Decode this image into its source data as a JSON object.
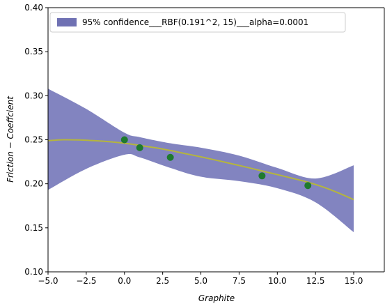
{
  "chart_data": {
    "type": "line",
    "xlabel": "Graphite",
    "ylabel": "Friction − Coeffcient",
    "xlim": [
      -5.0,
      17.0
    ],
    "ylim": [
      0.1,
      0.4
    ],
    "xticks": [
      -5.0,
      -2.5,
      0.0,
      2.5,
      5.0,
      7.5,
      10.0,
      12.5,
      15.0
    ],
    "xtick_labels": [
      "−5.0",
      "−2.5",
      "0.0",
      "2.5",
      "5.0",
      "7.5",
      "10.0",
      "12.5",
      "15.0"
    ],
    "yticks": [
      0.1,
      0.15,
      0.2,
      0.25,
      0.3,
      0.35,
      0.4
    ],
    "ytick_labels": [
      "0.10",
      "0.15",
      "0.20",
      "0.25",
      "0.30",
      "0.35",
      "0.40"
    ],
    "grid": false,
    "legend": {
      "placement": "top-left",
      "entries": [
        "95% confidence___RBF(0.191^2, 15)___alpha=0.0001"
      ]
    },
    "confidence_band": {
      "x": [
        -5,
        -2.5,
        0,
        1,
        3,
        5,
        7.5,
        10,
        12.5,
        15
      ],
      "upper": [
        0.308,
        0.285,
        0.258,
        0.253,
        0.246,
        0.241,
        0.232,
        0.218,
        0.206,
        0.221
      ],
      "lower": [
        0.193,
        0.217,
        0.233,
        0.23,
        0.218,
        0.208,
        0.203,
        0.195,
        0.179,
        0.145
      ]
    },
    "series": [
      {
        "type": "line",
        "x": [
          -5,
          -4,
          -3,
          -2,
          -1,
          0,
          1,
          2,
          3,
          4,
          5,
          6,
          7,
          8,
          9,
          10,
          11,
          12,
          13,
          14,
          15
        ],
        "y": [
          0.249,
          0.25,
          0.2498,
          0.249,
          0.2478,
          0.246,
          0.2436,
          0.241,
          0.2378,
          0.2342,
          0.2306,
          0.2268,
          0.2228,
          0.2188,
          0.2146,
          0.2104,
          0.2062,
          0.2018,
          0.1963,
          0.1896,
          0.182
        ]
      },
      {
        "type": "scatter",
        "x": [
          0,
          1,
          3,
          9,
          12
        ],
        "y": [
          0.25,
          0.241,
          0.23,
          0.209,
          0.198
        ]
      }
    ],
    "colors": {
      "band": "#7b7dbd",
      "mean_line": "#b5b53c",
      "points": "#1e7a2e",
      "legend_patch": "#6f71b3"
    }
  }
}
